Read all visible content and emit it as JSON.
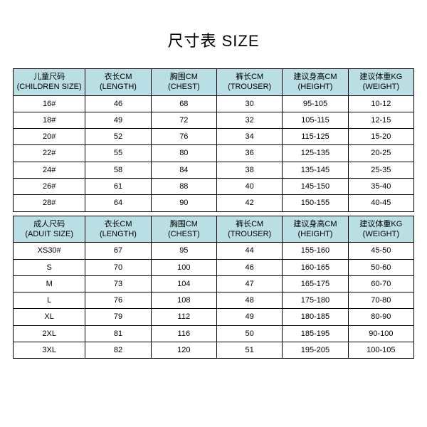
{
  "title": "尺寸表 SIZE",
  "colors": {
    "header_bg": "#b9dee3",
    "border": "#000000",
    "background": "#ffffff"
  },
  "children_table": {
    "columns": [
      {
        "line1": "儿童尺码",
        "line2": "(CHILDREN SIZE)"
      },
      {
        "line1": "衣长CM",
        "line2": "(LENGTH)"
      },
      {
        "line1": "胸围CM",
        "line2": "(CHEST)"
      },
      {
        "line1": "裤长CM",
        "line2": "(TROUSER)"
      },
      {
        "line1": "建议身高CM",
        "line2": "(HEIGHT)"
      },
      {
        "line1": "建议体重KG",
        "line2": "(WEIGHT)"
      }
    ],
    "rows": [
      [
        "16#",
        "46",
        "68",
        "30",
        "95-105",
        "10-12"
      ],
      [
        "18#",
        "49",
        "72",
        "32",
        "105-115",
        "12-15"
      ],
      [
        "20#",
        "52",
        "76",
        "34",
        "115-125",
        "15-20"
      ],
      [
        "22#",
        "55",
        "80",
        "36",
        "125-135",
        "20-25"
      ],
      [
        "24#",
        "58",
        "84",
        "38",
        "135-145",
        "25-35"
      ],
      [
        "26#",
        "61",
        "88",
        "40",
        "145-150",
        "35-40"
      ],
      [
        "28#",
        "64",
        "90",
        "42",
        "150-155",
        "40-45"
      ]
    ]
  },
  "adult_table": {
    "columns": [
      {
        "line1": "成人尺码",
        "line2": "(ADUIT SIZE)"
      },
      {
        "line1": "衣长CM",
        "line2": "(LENGTH)"
      },
      {
        "line1": "胸围CM",
        "line2": "(CHEST)"
      },
      {
        "line1": "裤长CM",
        "line2": "(TROUSER)"
      },
      {
        "line1": "建议身高CM",
        "line2": "(HEIGHT)"
      },
      {
        "line1": "建议体重KG",
        "line2": "(WEIGHT)"
      }
    ],
    "rows": [
      [
        "XS30#",
        "67",
        "95",
        "44",
        "155-160",
        "45-50"
      ],
      [
        "S",
        "70",
        "100",
        "46",
        "160-165",
        "50-60"
      ],
      [
        "M",
        "73",
        "104",
        "47",
        "165-175",
        "60-70"
      ],
      [
        "L",
        "76",
        "108",
        "48",
        "175-180",
        "70-80"
      ],
      [
        "XL",
        "79",
        "112",
        "49",
        "180-185",
        "80-90"
      ],
      [
        "2XL",
        "81",
        "116",
        "50",
        "185-195",
        "90-100"
      ],
      [
        "3XL",
        "82",
        "120",
        "51",
        "195-205",
        "100-105"
      ]
    ]
  }
}
